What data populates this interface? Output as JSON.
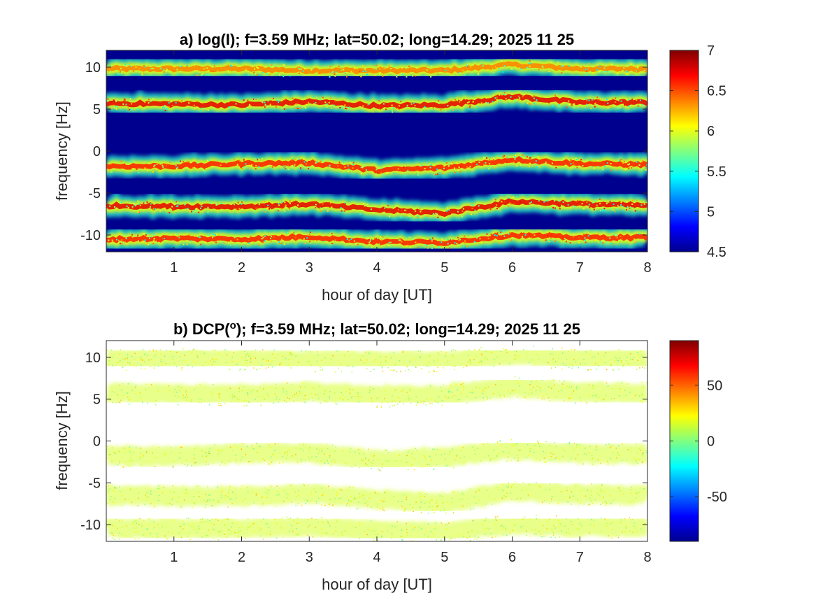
{
  "chart_data": [
    {
      "type": "heatmap",
      "title": "a) log(I); f=3.59 MHz;  lat=50.02; long=14.29; 2025 11 25",
      "xlabel": "hour of day [UT]",
      "ylabel": "frequency [Hz]",
      "xlim": [
        0,
        8
      ],
      "ylim": [
        -12,
        12
      ],
      "xticks": [
        1,
        2,
        3,
        4,
        5,
        6,
        7,
        8
      ],
      "yticks": [
        10,
        5,
        0,
        -5,
        -10
      ],
      "colormap": "jet",
      "clim": [
        4.5,
        7
      ],
      "colorbar_ticks": [
        7,
        6.5,
        6,
        5.5,
        5,
        4.5
      ],
      "background_color": "#00008f",
      "traces": [
        {
          "x": [
            0,
            1,
            2,
            3,
            4,
            5,
            6,
            7,
            8
          ],
          "y": [
            9.8,
            9.8,
            9.8,
            9.6,
            9.6,
            9.6,
            10.3,
            9.8,
            9.8
          ],
          "strength": 0.75
        },
        {
          "x": [
            0,
            1,
            2,
            3,
            4,
            5,
            6,
            7,
            8
          ],
          "y": [
            5.7,
            5.6,
            5.5,
            5.9,
            5.4,
            5.5,
            6.5,
            5.8,
            5.8
          ],
          "strength": 0.9
        },
        {
          "x": [
            0,
            1,
            2,
            3,
            4,
            5,
            6,
            7,
            8
          ],
          "y": [
            -1.8,
            -1.8,
            -1.5,
            -1.4,
            -2.3,
            -2.0,
            -1.0,
            -1.5,
            -1.6
          ],
          "strength": 0.85
        },
        {
          "x": [
            0,
            1,
            2,
            3,
            4,
            5,
            6,
            7,
            8
          ],
          "y": [
            -6.5,
            -6.6,
            -6.6,
            -6.3,
            -7.0,
            -7.4,
            -6.0,
            -6.3,
            -6.5
          ],
          "strength": 0.9
        },
        {
          "x": [
            0,
            1,
            2,
            3,
            4,
            5,
            6,
            7,
            8
          ],
          "y": [
            -10.5,
            -10.4,
            -10.5,
            -10.2,
            -10.8,
            -10.9,
            -10.0,
            -10.3,
            -10.3
          ],
          "strength": 0.85
        }
      ]
    },
    {
      "type": "heatmap",
      "title": "b) DCP(°); f=3.59 MHz;  lat=50.02; long=14.29; 2025 11 25",
      "title_prefix": "b) DCP(",
      "title_sup": "o",
      "title_suffix": "); f=3.59 MHz;  lat=50.02; long=14.29; 2025 11 25",
      "xlabel": "hour of day [UT]",
      "ylabel": "frequency [Hz]",
      "xlim": [
        0,
        8
      ],
      "ylim": [
        -12,
        12
      ],
      "xticks": [
        1,
        2,
        3,
        4,
        5,
        6,
        7,
        8
      ],
      "yticks": [
        10,
        5,
        0,
        -5,
        -10
      ],
      "colormap": "jet",
      "clim": [
        -90,
        90
      ],
      "colorbar_ticks": [
        50,
        0,
        -50
      ],
      "background_color": "#ffffff",
      "dominant_value": 15,
      "traces": [
        {
          "x": [
            0,
            1,
            2,
            3,
            4,
            5,
            6,
            7,
            8
          ],
          "y": [
            9.8,
            9.8,
            9.8,
            9.6,
            9.6,
            9.6,
            10.3,
            9.8,
            9.8
          ]
        },
        {
          "x": [
            0,
            1,
            2,
            3,
            4,
            5,
            6,
            7,
            8
          ],
          "y": [
            5.7,
            5.6,
            5.5,
            5.9,
            5.4,
            5.5,
            6.5,
            5.8,
            5.8
          ]
        },
        {
          "x": [
            0,
            1,
            2,
            3,
            4,
            5,
            6,
            7,
            8
          ],
          "y": [
            -1.8,
            -1.8,
            -1.5,
            -1.4,
            -2.3,
            -2.0,
            -1.0,
            -1.5,
            -1.6
          ]
        },
        {
          "x": [
            0,
            1,
            2,
            3,
            4,
            5,
            6,
            7,
            8
          ],
          "y": [
            -6.5,
            -6.6,
            -6.6,
            -6.3,
            -7.0,
            -7.4,
            -6.0,
            -6.3,
            -6.5
          ]
        },
        {
          "x": [
            0,
            1,
            2,
            3,
            4,
            5,
            6,
            7,
            8
          ],
          "y": [
            -10.5,
            -10.4,
            -10.5,
            -10.2,
            -10.8,
            -10.9,
            -10.0,
            -10.3,
            -10.3
          ]
        }
      ]
    }
  ]
}
